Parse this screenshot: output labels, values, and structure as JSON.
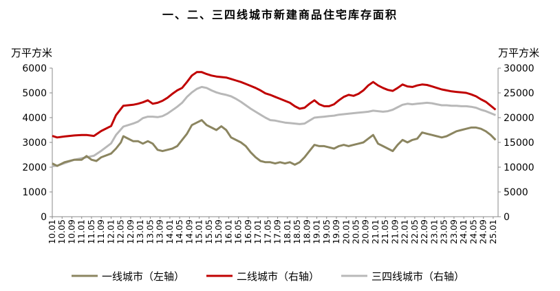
{
  "chart_data": {
    "type": "line",
    "title": "一、二、三四线城市新建商品住宅库存面积",
    "ylabel_left": "万平方米",
    "ylabel_right": "万平方米",
    "ylim_left": [
      0,
      6000
    ],
    "ylim_right": [
      0,
      30000
    ],
    "yticks_left": [
      "0",
      "1000",
      "2000",
      "3000",
      "4000",
      "5000",
      "6000"
    ],
    "yticks_right": [
      "0",
      "5000",
      "10000",
      "15000",
      "20000",
      "25000",
      "30000"
    ],
    "x_start": "10.01",
    "x_end": "25.03",
    "x_tick_labels": [
      "10.01",
      "10.05",
      "10.09",
      "11.01",
      "11.05",
      "11.09",
      "12.01",
      "12.05",
      "12.09",
      "13.01",
      "13.05",
      "13.09",
      "14.01",
      "14.05",
      "14.09",
      "15.01",
      "15.05",
      "15.09",
      "16.01",
      "16.05",
      "16.09",
      "17.01",
      "17.05",
      "17.09",
      "18.01",
      "18.05",
      "18.09",
      "19.01",
      "19.05",
      "19.09",
      "20.01",
      "20.05",
      "20.09",
      "21.01",
      "21.05",
      "21.09",
      "22.01",
      "22.05",
      "22.09",
      "23.01",
      "23.05",
      "23.09",
      "24.01",
      "24.05",
      "24.09",
      "25.01"
    ],
    "legend_position": "bottom",
    "series": [
      {
        "name": "一线城市（左轴）",
        "axis": "left",
        "color": "#8b8560",
        "points": [
          [
            "10.01",
            2150
          ],
          [
            "10.03",
            2050
          ],
          [
            "10.06",
            2200
          ],
          [
            "10.10",
            2300
          ],
          [
            "11.01",
            2300
          ],
          [
            "11.03",
            2450
          ],
          [
            "11.05",
            2300
          ],
          [
            "11.07",
            2250
          ],
          [
            "11.09",
            2400
          ],
          [
            "12.01",
            2550
          ],
          [
            "12.03",
            2750
          ],
          [
            "12.05",
            3000
          ],
          [
            "12.06",
            3250
          ],
          [
            "12.08",
            3150
          ],
          [
            "12.10",
            3050
          ],
          [
            "12.12",
            3050
          ],
          [
            "13.02",
            2950
          ],
          [
            "13.04",
            3050
          ],
          [
            "13.06",
            2950
          ],
          [
            "13.08",
            2700
          ],
          [
            "13.10",
            2650
          ],
          [
            "13.12",
            2700
          ],
          [
            "14.02",
            2750
          ],
          [
            "14.04",
            2850
          ],
          [
            "14.06",
            3100
          ],
          [
            "14.08",
            3350
          ],
          [
            "14.10",
            3700
          ],
          [
            "14.12",
            3800
          ],
          [
            "15.02",
            3900
          ],
          [
            "15.04",
            3700
          ],
          [
            "15.06",
            3600
          ],
          [
            "15.08",
            3500
          ],
          [
            "15.10",
            3650
          ],
          [
            "15.12",
            3500
          ],
          [
            "16.02",
            3200
          ],
          [
            "16.04",
            3100
          ],
          [
            "16.06",
            3000
          ],
          [
            "16.08",
            2850
          ],
          [
            "16.10",
            2600
          ],
          [
            "16.12",
            2400
          ],
          [
            "17.02",
            2250
          ],
          [
            "17.04",
            2200
          ],
          [
            "17.06",
            2200
          ],
          [
            "17.08",
            2150
          ],
          [
            "17.10",
            2200
          ],
          [
            "17.12",
            2150
          ],
          [
            "18.02",
            2200
          ],
          [
            "18.04",
            2100
          ],
          [
            "18.06",
            2200
          ],
          [
            "18.08",
            2400
          ],
          [
            "18.10",
            2650
          ],
          [
            "18.12",
            2900
          ],
          [
            "19.02",
            2850
          ],
          [
            "19.04",
            2850
          ],
          [
            "19.06",
            2800
          ],
          [
            "19.08",
            2750
          ],
          [
            "19.10",
            2850
          ],
          [
            "19.12",
            2900
          ],
          [
            "20.02",
            2850
          ],
          [
            "20.04",
            2900
          ],
          [
            "20.06",
            2950
          ],
          [
            "20.08",
            3000
          ],
          [
            "20.10",
            3150
          ],
          [
            "20.12",
            3300
          ],
          [
            "21.02",
            2950
          ],
          [
            "21.04",
            2850
          ],
          [
            "21.06",
            2750
          ],
          [
            "21.08",
            2650
          ],
          [
            "21.10",
            2900
          ],
          [
            "21.12",
            3100
          ],
          [
            "22.02",
            3000
          ],
          [
            "22.04",
            3100
          ],
          [
            "22.06",
            3150
          ],
          [
            "22.08",
            3400
          ],
          [
            "22.10",
            3350
          ],
          [
            "22.12",
            3300
          ],
          [
            "23.02",
            3250
          ],
          [
            "23.04",
            3200
          ],
          [
            "23.06",
            3250
          ],
          [
            "23.08",
            3350
          ],
          [
            "23.10",
            3450
          ],
          [
            "23.12",
            3500
          ],
          [
            "24.02",
            3550
          ],
          [
            "24.04",
            3600
          ],
          [
            "24.06",
            3600
          ],
          [
            "24.08",
            3550
          ],
          [
            "24.10",
            3450
          ],
          [
            "24.12",
            3300
          ],
          [
            "25.02",
            3100
          ]
        ]
      },
      {
        "name": "二线城市（右轴）",
        "axis": "right",
        "color": "#c00000",
        "points": [
          [
            "10.01",
            16300
          ],
          [
            "10.03",
            16000
          ],
          [
            "10.06",
            16200
          ],
          [
            "10.10",
            16400
          ],
          [
            "11.01",
            16500
          ],
          [
            "11.03",
            16500
          ],
          [
            "11.06",
            16300
          ],
          [
            "11.09",
            17300
          ],
          [
            "12.01",
            18300
          ],
          [
            "12.03",
            20500
          ],
          [
            "12.06",
            22400
          ],
          [
            "12.08",
            22500
          ],
          [
            "12.10",
            22600
          ],
          [
            "12.12",
            22800
          ],
          [
            "13.02",
            23100
          ],
          [
            "13.04",
            23500
          ],
          [
            "13.06",
            22800
          ],
          [
            "13.08",
            23000
          ],
          [
            "13.10",
            23400
          ],
          [
            "13.12",
            24000
          ],
          [
            "14.02",
            24800
          ],
          [
            "14.04",
            25500
          ],
          [
            "14.06",
            26000
          ],
          [
            "14.08",
            27200
          ],
          [
            "14.10",
            28500
          ],
          [
            "14.12",
            29200
          ],
          [
            "15.02",
            29200
          ],
          [
            "15.04",
            28800
          ],
          [
            "15.06",
            28500
          ],
          [
            "15.08",
            28300
          ],
          [
            "15.10",
            28200
          ],
          [
            "15.12",
            28100
          ],
          [
            "16.02",
            27800
          ],
          [
            "16.04",
            27500
          ],
          [
            "16.06",
            27200
          ],
          [
            "16.08",
            26800
          ],
          [
            "16.10",
            26400
          ],
          [
            "16.12",
            26000
          ],
          [
            "17.02",
            25500
          ],
          [
            "17.04",
            24900
          ],
          [
            "17.06",
            24600
          ],
          [
            "17.08",
            24200
          ],
          [
            "17.10",
            23800
          ],
          [
            "17.12",
            23400
          ],
          [
            "18.02",
            23000
          ],
          [
            "18.04",
            22300
          ],
          [
            "18.06",
            21800
          ],
          [
            "18.08",
            22000
          ],
          [
            "18.10",
            22800
          ],
          [
            "18.12",
            23500
          ],
          [
            "19.02",
            22700
          ],
          [
            "19.04",
            22300
          ],
          [
            "19.06",
            22300
          ],
          [
            "19.08",
            22700
          ],
          [
            "19.10",
            23500
          ],
          [
            "19.12",
            24200
          ],
          [
            "20.02",
            24600
          ],
          [
            "20.04",
            24400
          ],
          [
            "20.06",
            24800
          ],
          [
            "20.08",
            25500
          ],
          [
            "20.10",
            26500
          ],
          [
            "20.12",
            27200
          ],
          [
            "21.02",
            26500
          ],
          [
            "21.04",
            26000
          ],
          [
            "21.06",
            25600
          ],
          [
            "21.08",
            25400
          ],
          [
            "21.10",
            26000
          ],
          [
            "21.12",
            26700
          ],
          [
            "22.02",
            26300
          ],
          [
            "22.04",
            26200
          ],
          [
            "22.06",
            26500
          ],
          [
            "22.08",
            26700
          ],
          [
            "22.10",
            26600
          ],
          [
            "22.12",
            26300
          ],
          [
            "23.02",
            26000
          ],
          [
            "23.04",
            25700
          ],
          [
            "23.06",
            25500
          ],
          [
            "23.08",
            25300
          ],
          [
            "23.10",
            25200
          ],
          [
            "23.12",
            25100
          ],
          [
            "24.02",
            25000
          ],
          [
            "24.04",
            24700
          ],
          [
            "24.06",
            24300
          ],
          [
            "24.08",
            23700
          ],
          [
            "24.10",
            23200
          ],
          [
            "24.12",
            22400
          ],
          [
            "25.02",
            21600
          ]
        ]
      },
      {
        "name": "三四线城市（右轴）",
        "axis": "right",
        "color": "#b8b8b8",
        "points": [
          [
            "10.01",
            10200
          ],
          [
            "10.03",
            10300
          ],
          [
            "10.06",
            10800
          ],
          [
            "10.10",
            11500
          ],
          [
            "11.01",
            11800
          ],
          [
            "11.03",
            12000
          ],
          [
            "11.06",
            12300
          ],
          [
            "11.09",
            13300
          ],
          [
            "12.01",
            14800
          ],
          [
            "12.03",
            16500
          ],
          [
            "12.06",
            18200
          ],
          [
            "12.08",
            18500
          ],
          [
            "12.10",
            18800
          ],
          [
            "12.12",
            19200
          ],
          [
            "13.02",
            19900
          ],
          [
            "13.04",
            20200
          ],
          [
            "13.06",
            20200
          ],
          [
            "13.08",
            20100
          ],
          [
            "13.10",
            20300
          ],
          [
            "13.12",
            20800
          ],
          [
            "14.02",
            21500
          ],
          [
            "14.04",
            22200
          ],
          [
            "14.06",
            23000
          ],
          [
            "14.08",
            24200
          ],
          [
            "14.10",
            25100
          ],
          [
            "14.12",
            25800
          ],
          [
            "15.02",
            26200
          ],
          [
            "15.04",
            26000
          ],
          [
            "15.06",
            25500
          ],
          [
            "15.08",
            25100
          ],
          [
            "15.10",
            24800
          ],
          [
            "15.12",
            24600
          ],
          [
            "16.02",
            24300
          ],
          [
            "16.04",
            23800
          ],
          [
            "16.06",
            23200
          ],
          [
            "16.08",
            22500
          ],
          [
            "16.10",
            21800
          ],
          [
            "16.12",
            21200
          ],
          [
            "17.02",
            20600
          ],
          [
            "17.04",
            20000
          ],
          [
            "17.06",
            19500
          ],
          [
            "17.08",
            19400
          ],
          [
            "17.10",
            19200
          ],
          [
            "17.12",
            19000
          ],
          [
            "18.02",
            18900
          ],
          [
            "18.04",
            18800
          ],
          [
            "18.06",
            18700
          ],
          [
            "18.08",
            18800
          ],
          [
            "18.10",
            19400
          ],
          [
            "18.12",
            20000
          ],
          [
            "19.02",
            20100
          ],
          [
            "19.04",
            20200
          ],
          [
            "19.06",
            20300
          ],
          [
            "19.08",
            20400
          ],
          [
            "19.10",
            20600
          ],
          [
            "19.12",
            20700
          ],
          [
            "20.02",
            20800
          ],
          [
            "20.04",
            20900
          ],
          [
            "20.06",
            21000
          ],
          [
            "20.08",
            21100
          ],
          [
            "20.10",
            21200
          ],
          [
            "20.12",
            21400
          ],
          [
            "21.02",
            21300
          ],
          [
            "21.04",
            21200
          ],
          [
            "21.06",
            21300
          ],
          [
            "21.08",
            21600
          ],
          [
            "21.10",
            22100
          ],
          [
            "21.12",
            22600
          ],
          [
            "22.02",
            22800
          ],
          [
            "22.04",
            22700
          ],
          [
            "22.06",
            22800
          ],
          [
            "22.08",
            22900
          ],
          [
            "22.10",
            23000
          ],
          [
            "22.12",
            22900
          ],
          [
            "23.02",
            22700
          ],
          [
            "23.04",
            22500
          ],
          [
            "23.06",
            22500
          ],
          [
            "23.08",
            22400
          ],
          [
            "23.10",
            22400
          ],
          [
            "23.12",
            22300
          ],
          [
            "24.02",
            22300
          ],
          [
            "24.04",
            22200
          ],
          [
            "24.06",
            22000
          ],
          [
            "24.08",
            21600
          ],
          [
            "24.10",
            21300
          ],
          [
            "24.12",
            20900
          ],
          [
            "25.02",
            20500
          ]
        ]
      }
    ]
  }
}
